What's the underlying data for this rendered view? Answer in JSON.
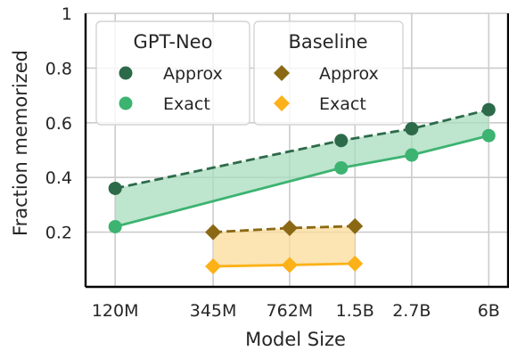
{
  "chart_data": {
    "type": "line",
    "xlabel": "Model Size",
    "ylabel": "Fraction memorized",
    "x_scale": "log",
    "x_unit": "parameters",
    "categories": [
      "120M",
      "345M",
      "762M",
      "1.5B",
      "2.7B",
      "6B"
    ],
    "ylim": [
      0,
      1
    ],
    "y_ticks": [
      0.2,
      0.4,
      0.6,
      0.8,
      1
    ],
    "y_tick_labels": [
      "0.2",
      "0.4",
      "0.6",
      "0.8",
      "1"
    ],
    "grid": true,
    "legend_position": "top-left",
    "legend_groups": [
      {
        "title": "GPT-Neo",
        "entries": [
          "Approx",
          "Exact"
        ]
      },
      {
        "title": "Baseline",
        "entries": [
          "Approx",
          "Exact"
        ]
      }
    ],
    "series": [
      {
        "group": "GPT-Neo",
        "name": "Approx",
        "marker": "circle",
        "line": "dashed",
        "color": "#2d6a4a",
        "x": [
          125000000,
          1300000000,
          2700000000,
          6000000000
        ],
        "values": [
          0.36,
          0.535,
          0.578,
          0.648
        ]
      },
      {
        "group": "GPT-Neo",
        "name": "Exact",
        "marker": "circle",
        "line": "solid",
        "color": "#3cb371",
        "x": [
          125000000,
          1300000000,
          2700000000,
          6000000000
        ],
        "values": [
          0.22,
          0.435,
          0.482,
          0.553
        ]
      },
      {
        "group": "Baseline",
        "name": "Approx",
        "marker": "diamond",
        "line": "dashed",
        "color": "#8b6914",
        "x": [
          345000000,
          762000000,
          1500000000
        ],
        "values": [
          0.2,
          0.215,
          0.222
        ]
      },
      {
        "group": "Baseline",
        "name": "Exact",
        "marker": "diamond",
        "line": "solid",
        "color": "#fbb117",
        "x": [
          345000000,
          762000000,
          1500000000
        ],
        "values": [
          0.075,
          0.08,
          0.085
        ]
      }
    ],
    "fills": [
      {
        "between": [
          "GPT-Neo Approx",
          "GPT-Neo Exact"
        ],
        "color": "#a8dcbc"
      },
      {
        "between": [
          "Baseline Approx",
          "Baseline Exact"
        ],
        "color": "#fbdb9a"
      }
    ]
  }
}
